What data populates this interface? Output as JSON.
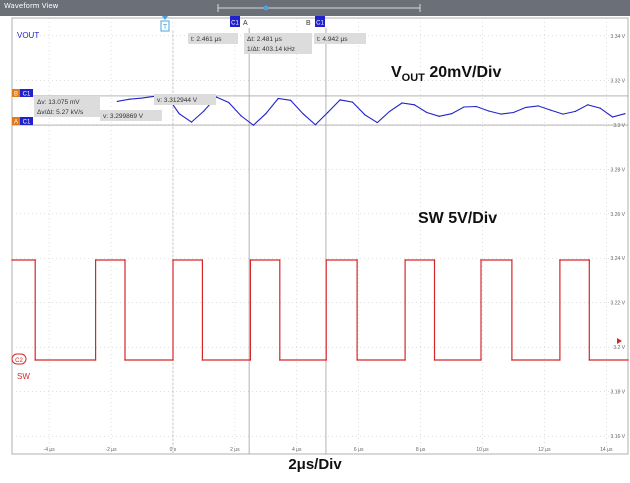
{
  "window_title": "Waveform View",
  "colors": {
    "vout": "#2222cc",
    "sw": "#d62728",
    "grid": "#c8c8c8",
    "cursor": "#a0a0a0",
    "trigger": "#4aa3df",
    "badge": "#e07b1c"
  },
  "channels": {
    "vout_label": "VOUT",
    "sw_label": "SW",
    "c1": "C1",
    "c2": "C2"
  },
  "annotations": {
    "vout_scale_base": "V",
    "vout_scale_sub": "OUT",
    "vout_scale_suffix": " 20mV/Div",
    "sw_scale": "SW 5V/Div",
    "time_scale": "2μs/Div"
  },
  "markers": {
    "trigger": "T",
    "cursor_a": "A",
    "cursor_b": "B",
    "ch_badge": "C1",
    "ref_b": "B",
    "ref_a": "A"
  },
  "readouts": {
    "t_a": "t: 2.461 μs",
    "delta_t": "Δt: 2.481 μs",
    "inv_delta_t": "1/Δt: 403.14 kHz",
    "t_b": "t: 4.942 μs",
    "delta_v": "Δv: 13.075 mV",
    "delta_v_dt": "Δv/Δt: 5.27 kV/s",
    "v_a": "v: 3.312944 V",
    "v_b": "v: 3.299869 V"
  },
  "chart_data": {
    "type": "line",
    "title": "",
    "xlabel": "",
    "ylabel": "",
    "x_ticks": [
      "-4 μs",
      "-2 μs",
      "0 s",
      "2 μs",
      "4 μs",
      "6 μs",
      "8 μs",
      "10 μs",
      "12 μs",
      "14 μs"
    ],
    "x_tick_values": [
      -4,
      -2,
      0,
      2,
      4,
      6,
      8,
      10,
      12,
      14
    ],
    "xlim": [
      -5.2,
      14.7
    ],
    "y_ticks": [
      "3.34 V",
      "3.32 V",
      "3.3 V",
      "3.28 V",
      "3.26 V",
      "3.24 V",
      "3.22 V",
      "3.2 V",
      "3.18 V",
      "3.16 V"
    ],
    "y_tick_values": [
      3.34,
      3.32,
      3.3,
      3.28,
      3.26,
      3.24,
      3.22,
      3.2,
      3.18,
      3.16
    ],
    "ylim": [
      3.152,
      3.348
    ],
    "grid": true,
    "cursors_x": [
      2.461,
      4.942
    ],
    "trigger_x": 0,
    "series": [
      {
        "name": "VOUT",
        "x": [
          -1.8,
          -1.4,
          -1.0,
          -0.6,
          -0.2,
          0.2,
          0.6,
          1.0,
          1.4,
          1.8,
          2.2,
          2.6,
          3.0,
          3.4,
          3.8,
          4.2,
          4.6,
          5.0,
          5.4,
          5.8,
          6.2,
          6.6,
          7.0,
          7.4,
          7.8,
          8.2,
          8.6,
          9.0,
          9.4,
          9.8,
          10.2,
          10.6,
          11.0,
          11.4,
          11.8,
          12.2,
          12.6,
          13.0,
          13.4,
          13.8,
          14.2,
          14.6
        ],
        "values": [
          3.3105,
          3.3115,
          3.312,
          3.3128,
          3.313,
          3.305,
          3.3012,
          3.3062,
          3.3125,
          3.31,
          3.304,
          3.2998,
          3.305,
          3.3118,
          3.311,
          3.305,
          3.3,
          3.3055,
          3.3112,
          3.3102,
          3.3045,
          3.301,
          3.306,
          3.3098,
          3.309,
          3.3055,
          3.3038,
          3.305,
          3.308,
          3.3082,
          3.3062,
          3.3048,
          3.3055,
          3.3078,
          3.3085,
          3.3066,
          3.3048,
          3.306,
          3.309,
          3.3075,
          3.3035,
          3.305
        ]
      },
      {
        "name": "SW",
        "unit": "V",
        "x": [
          -5.2,
          -4.45,
          -4.45,
          -2.5,
          -2.5,
          -1.55,
          -1.55,
          0.0,
          0.0,
          0.95,
          0.95,
          2.5,
          2.5,
          3.45,
          3.45,
          4.95,
          4.95,
          5.95,
          5.95,
          7.5,
          7.5,
          8.45,
          8.45,
          9.95,
          9.95,
          10.95,
          10.95,
          12.5,
          12.5,
          13.45,
          13.45,
          14.7
        ],
        "values": [
          12.5,
          12.5,
          0,
          0,
          12.5,
          12.5,
          0,
          0,
          12.5,
          12.5,
          0,
          0,
          12.5,
          12.5,
          0,
          0,
          12.5,
          12.5,
          0,
          0,
          12.5,
          12.5,
          0,
          0,
          12.5,
          12.5,
          0,
          0,
          12.5,
          12.5,
          0,
          0
        ]
      }
    ]
  }
}
